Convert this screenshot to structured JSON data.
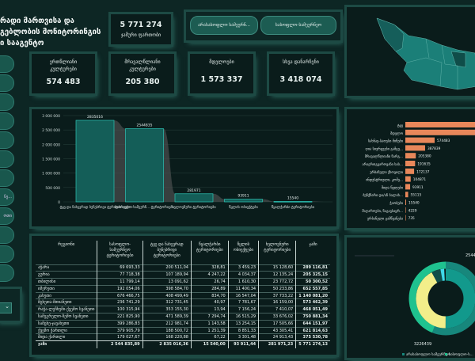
{
  "header": {
    "title_lines": [
      "რადი მართვისა და",
      "გებლობის მონიტორინგის",
      "ი სააგენტო"
    ]
  },
  "total": {
    "value": "5 771 274",
    "label": "ჯამური ფართობი"
  },
  "filters": [
    "არასასოფლო სამეურნ...",
    "სასოფლო-სამეურნეო"
  ],
  "kpis": [
    {
      "label": "ერთწლიანი კულტურები",
      "value": "574 483"
    },
    {
      "label": "მრავალწლიანი კულტურები",
      "value": "205 380"
    },
    {
      "label": "მდელოები",
      "value": "1 573 337"
    },
    {
      "label": "სხვა დანარჩენი",
      "value": "3 418 074"
    }
  ],
  "sidebar": {
    "items": [
      "",
      "",
      "",
      "",
      "",
      "",
      "",
      "ნე...",
      "ოთი",
      "",
      "",
      ""
    ],
    "dropdown_icon": "chevron-down-icon"
  },
  "colors": {
    "bar": "#145e58",
    "bar_border": "#2ec4b6",
    "hbar": "#e8875a",
    "donut_teal": "#17877c",
    "donut_green": "#1fc28f",
    "donut_yellow": "#f2ee8a"
  },
  "chart_data": [
    {
      "type": "bar",
      "categories": [
        "ტყე და ნახევრად ბუნებრივი ტერიტორიები",
        "სასოფლო-სამეურნ... ტერიტორიები",
        "ხელოვნური ტერიტორიები",
        "წყლის ობიექტები",
        "წყალჭარბი ტერიტორიები"
      ],
      "values": [
        2835016,
        2544835,
        281971,
        93911,
        15540
      ],
      "data_labels": [
        "2835016",
        "2544835",
        "281971",
        "93911",
        "15540"
      ],
      "ylim": [
        0,
        3000000
      ],
      "yticks": [
        "0",
        "500 000",
        "1 000 000",
        "1 500 000",
        "2 000 000",
        "2 500 000",
        "3 000 000"
      ],
      "grid": true
    },
    {
      "type": "bar",
      "orientation": "horizontal",
      "categories": [
        "ტყე",
        "მდელო",
        "სახნავ-სათესი მიწები",
        "ღია სივრცეები გამცე...",
        "მრავალწლიანი ნარგ...",
        "არაერთგვაროვანი სას...",
        "ურბანული ქსოვილი",
        "ინდუსტრიული, კომე...",
        "შიდა წყლები",
        "ბუჩქნარი და/ან ბალახ...",
        "ჭაობები",
        "მაღაროები, ნაგავსაყრ...",
        "ურბანული გამწვანება"
      ],
      "values": [
        null,
        null,
        574483,
        387839,
        205380,
        191635,
        172137,
        104871,
        93911,
        55115,
        15540,
        4229,
        735
      ],
      "data_labels": [
        "",
        "",
        "574483",
        "387839",
        "205380",
        "191635",
        "172137",
        "104871",
        "93911",
        "55115",
        "15540",
        "4229",
        "735"
      ]
    },
    {
      "type": "pie",
      "variant": "donut",
      "labels": [
        "არასასოფლო სამეურნეო",
        "სასოფლო-ს..."
      ],
      "values": [
        3226439,
        2544835
      ],
      "data_labels": [
        "3226439",
        "2544835"
      ],
      "legend": "bottom"
    }
  ],
  "table": {
    "headers": [
      "რეგიონი",
      "სასოფლო-სამეურნეო ტერიტორიები",
      "ტყე და ნახევრად ბუნებრივი ტერიტორიები",
      "წყალჭარბი ტერიტორიები",
      "წყლის ობიექტები",
      "ხელოვნური ტერიტორიები",
      "ჯამი"
    ],
    "rows": [
      [
        "აჭარა",
        "69 693,33",
        "200 511,04",
        "328,81",
        "3 459,23",
        "15 128,60",
        "289 116,81"
      ],
      [
        "გურია",
        "77 718,38",
        "107 189,94",
        "4 247,22",
        "4 034,37",
        "12 135,24",
        "205 325,15"
      ],
      [
        "თბილისი",
        "11 799,14",
        "13 091,62",
        "26,74",
        "1 610,30",
        "23 772,72",
        "50 300,52"
      ],
      [
        "იმერეთი",
        "192 054,06",
        "398 584,70",
        "284,89",
        "11 400,34",
        "50 233,86",
        "652 557,85"
      ],
      [
        "კახეთი",
        "676 466,75",
        "408 499,49",
        "834,70",
        "16 547,04",
        "37 733,22",
        "1 140 081,20"
      ],
      [
        "მცხეთა-მთიანეთი",
        "236 741,29",
        "312 731,45",
        "40,97",
        "7 781,67",
        "16 159,00",
        "573 462,39"
      ],
      [
        "რაჭა-ლეჩხუმი-ქვემო სვანეთი",
        "100 315,94",
        "353 155,30",
        "13,94",
        "7 156,24",
        "7 410,07",
        "468 051,49"
      ],
      [
        "სამეგრელო-ზემო სვანეთი",
        "221 825,90",
        "471 589,39",
        "7 294,74",
        "16 515,29",
        "33 676,02",
        "750 881,34"
      ],
      [
        "სამცხე-ჯავახეთი",
        "399 286,83",
        "212 981,74",
        "1 143,58",
        "13 254,15",
        "17 505,66",
        "644 151,97"
      ],
      [
        "ქვემო ქართლი",
        "379 905,79",
        "188 500,72",
        "1 251,39",
        "8 851,33",
        "43 305,41",
        "621 814,63"
      ],
      [
        "შიდა ქართლი",
        "179 027,67",
        "168 220,88",
        "67,22",
        "3 301,48",
        "24 913,43",
        "375 530,78"
      ]
    ],
    "total": [
      "ჯამი",
      "2 544 835,89",
      "2 835 016,36",
      "15 540,00",
      "93 911,44",
      "281 971,23",
      "5 771 274,13"
    ]
  }
}
